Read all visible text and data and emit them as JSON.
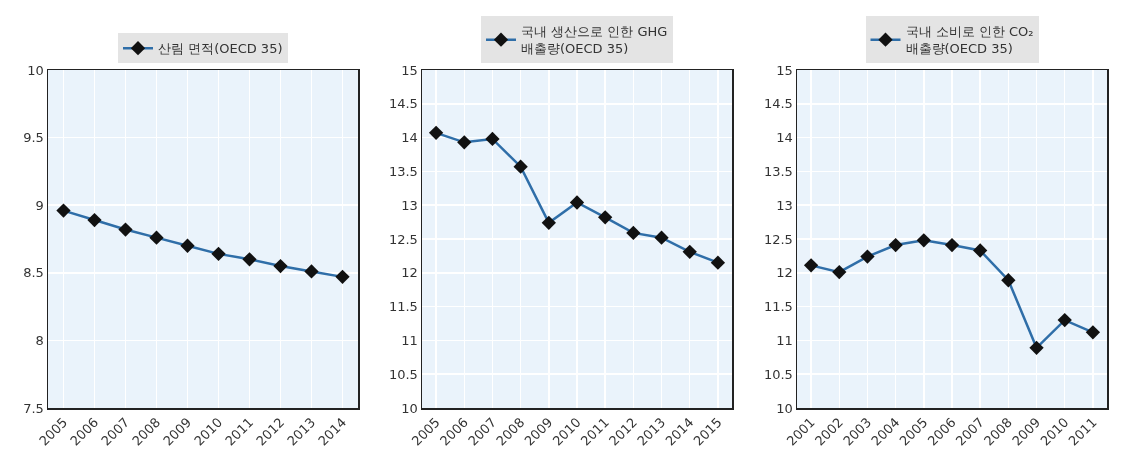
{
  "chart_data": [
    {
      "type": "line",
      "categories": [
        "2005",
        "2006",
        "2007",
        "2008",
        "2009",
        "2010",
        "2011",
        "2012",
        "2013",
        "2014"
      ],
      "series": [
        {
          "name": "산림 면적(OECD 35)",
          "color": "#2f6ea8",
          "values": [
            8.96,
            8.89,
            8.82,
            8.76,
            8.7,
            8.64,
            8.6,
            8.55,
            8.51,
            8.47
          ]
        }
      ],
      "ylim": [
        7.5,
        10
      ],
      "yticks": [
        7.5,
        8,
        8.5,
        9,
        9.5,
        10
      ],
      "grid": true,
      "legend": "top",
      "marker": "diamond",
      "line_style": "solid"
    },
    {
      "type": "line",
      "categories": [
        "2005",
        "2006",
        "2007",
        "2008",
        "2009",
        "2010",
        "2011",
        "2012",
        "2013",
        "2014",
        "2015"
      ],
      "series": [
        {
          "name": "국내 생산으로 인한 GHG 배출량(OECD 35)",
          "color": "#2f6ea8",
          "values": [
            14.07,
            13.93,
            13.98,
            13.57,
            12.74,
            13.04,
            12.82,
            12.59,
            12.52,
            12.31,
            12.15
          ]
        }
      ],
      "ylim": [
        10,
        15
      ],
      "yticks": [
        10,
        10.5,
        11,
        11.5,
        12,
        12.5,
        13,
        13.5,
        14,
        14.5,
        15
      ],
      "grid": true,
      "legend": "top",
      "marker": "diamond",
      "line_style": "solid"
    },
    {
      "type": "line",
      "categories": [
        "2001",
        "2002",
        "2003",
        "2004",
        "2005",
        "2006",
        "2007",
        "2008",
        "2009",
        "2010",
        "2011"
      ],
      "series": [
        {
          "name": "국내 소비로 인한 CO₂ 배출량(OECD 35)",
          "color": "#2f6ea8",
          "values": [
            12.11,
            12.01,
            12.24,
            12.41,
            12.48,
            12.41,
            12.33,
            11.89,
            10.89,
            11.3,
            11.12
          ]
        }
      ],
      "ylim": [
        10,
        15
      ],
      "yticks": [
        10,
        10.5,
        11,
        11.5,
        12,
        12.5,
        13,
        13.5,
        14,
        14.5,
        15
      ],
      "grid": true,
      "legend": "top",
      "marker": "diamond",
      "line_style": "solid"
    }
  ]
}
